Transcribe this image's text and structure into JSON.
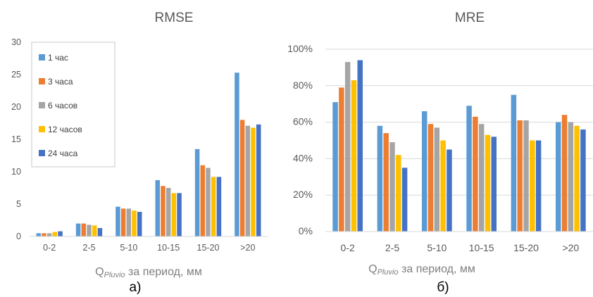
{
  "chart_data": [
    {
      "type": "bar",
      "title": "RMSE",
      "xlabel_main": "Q",
      "xlabel_subscript": "Pluvio",
      "xlabel_rest": " за период, мм",
      "caption": "а)",
      "categories": [
        "0-2",
        "2-5",
        "5-10",
        "10-15",
        "15-20",
        ">20"
      ],
      "ylim": [
        0,
        30
      ],
      "yticks": [
        "0",
        "5",
        "10",
        "15",
        "20",
        "25",
        "30"
      ],
      "grid": false,
      "legend": "top-left",
      "series": [
        {
          "name": "1 час",
          "color": "#5B9BD5",
          "values": [
            0.5,
            2.0,
            4.6,
            8.7,
            13.5,
            25.3
          ]
        },
        {
          "name": "3 часа",
          "color": "#ED7D31",
          "values": [
            0.5,
            2.0,
            4.3,
            7.8,
            11.0,
            18.0
          ]
        },
        {
          "name": "6 часов",
          "color": "#A5A5A5",
          "values": [
            0.5,
            1.8,
            4.3,
            7.5,
            10.6,
            17.1
          ]
        },
        {
          "name": "12 часов",
          "color": "#FFC000",
          "values": [
            0.7,
            1.7,
            4.0,
            6.7,
            9.2,
            16.8
          ]
        },
        {
          "name": "24 часа",
          "color": "#4472C4",
          "values": [
            0.8,
            1.3,
            3.8,
            6.7,
            9.2,
            17.3
          ]
        }
      ]
    },
    {
      "type": "bar",
      "title": "MRE",
      "xlabel_main": "Q",
      "xlabel_subscript": "Pluvio",
      "xlabel_rest": " за период, мм",
      "caption": "б)",
      "categories": [
        "0-2",
        "2-5",
        "5-10",
        "10-15",
        "15-20",
        ">20"
      ],
      "ylim": [
        0,
        100
      ],
      "yticks": [
        "0%",
        "20%",
        "40%",
        "60%",
        "80%",
        "100%"
      ],
      "grid": true,
      "series": [
        {
          "color": "#5B9BD5",
          "values": [
            71,
            58,
            66,
            69,
            75,
            60
          ]
        },
        {
          "color": "#ED7D31",
          "values": [
            79,
            54,
            59,
            63,
            61,
            64
          ]
        },
        {
          "color": "#A5A5A5",
          "values": [
            93,
            49,
            57,
            59,
            61,
            60
          ]
        },
        {
          "color": "#FFC000",
          "values": [
            83,
            42,
            50,
            53,
            50,
            58
          ]
        },
        {
          "color": "#4472C4",
          "values": [
            94,
            35,
            45,
            52,
            50,
            56
          ]
        }
      ]
    }
  ]
}
